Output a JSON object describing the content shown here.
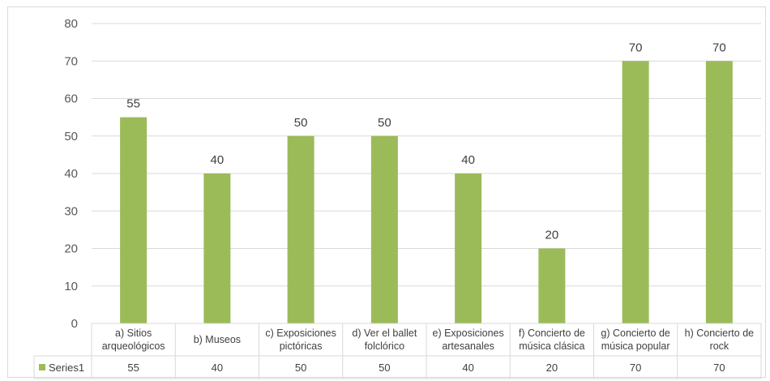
{
  "chart_data": {
    "type": "bar",
    "categories": [
      [
        "a) Sitios",
        "arqueológicos"
      ],
      [
        "b) Museos"
      ],
      [
        "c) Exposiciones",
        "pictóricas"
      ],
      [
        "d) Ver el ballet",
        "folclórico"
      ],
      [
        "e) Exposiciones",
        "artesanales"
      ],
      [
        "f) Concierto de",
        "música clásica"
      ],
      [
        "g) Concierto de",
        "música popular"
      ],
      [
        "h) Concierto de",
        "rock"
      ]
    ],
    "series": [
      {
        "name": "Series1",
        "values": [
          55,
          40,
          50,
          50,
          40,
          20,
          70,
          70
        ],
        "color": "#9bbb59"
      }
    ],
    "yticks": [
      "0",
      "10",
      "20",
      "30",
      "40",
      "50",
      "60",
      "70",
      "80"
    ],
    "ylim": [
      0,
      80
    ],
    "grid": true,
    "data_table": true,
    "legend": "in data table"
  }
}
